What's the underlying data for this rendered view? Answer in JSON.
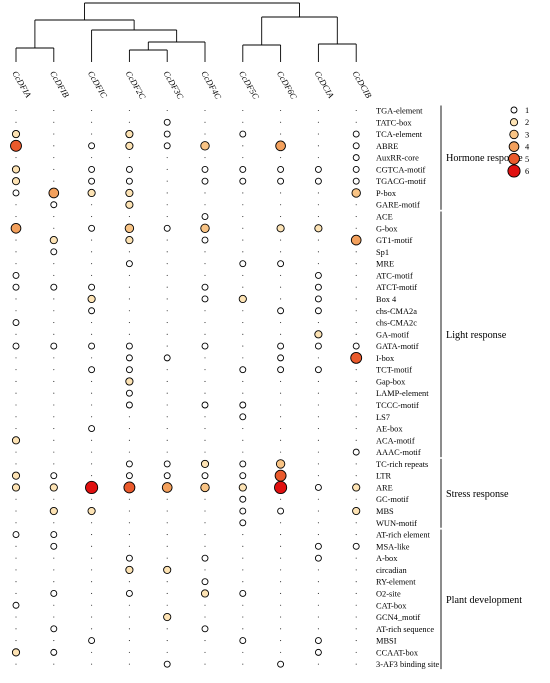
{
  "chart_data": {
    "type": "scatter",
    "title": "",
    "xlabel": "",
    "ylabel": "",
    "genes": [
      "CcDFIA",
      "CcDFIB",
      "CcDFIC",
      "CcDF2C",
      "CcDF3C",
      "CcDF4C",
      "CcDF5C",
      "CcDF6C",
      "CcDCIA",
      "CcDCIB"
    ],
    "elements": [
      "TGA-element",
      "TATC-box",
      "TCA-element",
      "ABRE",
      "AuxRR-core",
      "CGTCA-motif",
      "TGACG-motif",
      "P-box",
      "GARE-motif",
      "ACE",
      "G-box",
      "GT1-motif",
      "Sp1",
      "MRE",
      "ATC-motif",
      "ATCT-motif",
      "Box 4",
      "chs-CMA2a",
      "chs-CMA2c",
      "GA-motif",
      "GATA-motif",
      "I-box",
      "TCT-motif",
      "Gap-box",
      "LAMP-element",
      "TCCC-motif",
      "LS7",
      "AE-box",
      "ACA-motif",
      "AAAC-motif",
      "TC-rich repeats",
      "LTR",
      "ARE",
      "GC-motif",
      "MBS",
      "WUN-motif",
      "AT-rich element",
      "MSA-like",
      "A-box",
      "circadian",
      "RY-element",
      "O2-site",
      "CAT-box",
      "GCN4_motif",
      "AT-rich sequence",
      "MBSI",
      "CCAAT-box",
      "3-AF3 binding site"
    ],
    "groups": [
      {
        "name": "Hormone response",
        "start": 0,
        "end": 8
      },
      {
        "name": "Light response",
        "start": 9,
        "end": 29
      },
      {
        "name": "Stress response",
        "start": 30,
        "end": 35
      },
      {
        "name": "Plant development",
        "start": 36,
        "end": 47
      }
    ],
    "legend": {
      "values": [
        1,
        2,
        3,
        4,
        5,
        6
      ],
      "placement": "top-right"
    },
    "color_scale": [
      "#ffffff",
      "#fde3b4",
      "#f9c485",
      "#f3a05c",
      "#ea5a2c",
      "#e01010"
    ],
    "counts": [
      [
        0,
        0,
        0,
        0,
        0,
        0,
        0,
        0,
        0,
        0
      ],
      [
        0,
        0,
        0,
        0,
        1,
        0,
        0,
        0,
        0,
        0
      ],
      [
        2,
        0,
        0,
        2,
        1,
        0,
        1,
        0,
        0,
        1
      ],
      [
        5,
        0,
        1,
        2,
        1,
        3,
        0,
        4,
        0,
        1
      ],
      [
        0,
        0,
        0,
        0,
        0,
        0,
        0,
        0,
        0,
        1
      ],
      [
        2,
        0,
        1,
        1,
        0,
        1,
        1,
        1,
        1,
        1
      ],
      [
        2,
        0,
        1,
        1,
        0,
        1,
        1,
        1,
        1,
        1
      ],
      [
        1,
        4,
        2,
        2,
        0,
        0,
        0,
        0,
        0,
        3
      ],
      [
        0,
        1,
        0,
        2,
        0,
        0,
        0,
        0,
        0,
        0
      ],
      [
        0,
        0,
        0,
        0,
        0,
        1,
        0,
        0,
        0,
        0
      ],
      [
        4,
        0,
        1,
        3,
        1,
        3,
        0,
        2,
        2,
        0
      ],
      [
        0,
        2,
        0,
        2,
        0,
        1,
        0,
        0,
        0,
        4
      ],
      [
        0,
        1,
        0,
        0,
        0,
        0,
        0,
        0,
        0,
        0
      ],
      [
        0,
        0,
        0,
        1,
        0,
        0,
        1,
        1,
        0,
        0
      ],
      [
        1,
        0,
        0,
        0,
        0,
        0,
        0,
        0,
        1,
        0
      ],
      [
        1,
        1,
        1,
        0,
        0,
        1,
        0,
        0,
        1,
        0
      ],
      [
        0,
        0,
        2,
        0,
        0,
        1,
        2,
        0,
        1,
        0
      ],
      [
        0,
        0,
        1,
        0,
        0,
        0,
        0,
        1,
        1,
        0
      ],
      [
        1,
        0,
        0,
        0,
        0,
        0,
        0,
        0,
        0,
        0
      ],
      [
        0,
        0,
        0,
        0,
        0,
        0,
        0,
        0,
        2,
        0
      ],
      [
        1,
        1,
        1,
        1,
        0,
        1,
        0,
        1,
        1,
        1
      ],
      [
        0,
        0,
        0,
        1,
        1,
        0,
        0,
        1,
        0,
        5
      ],
      [
        0,
        0,
        1,
        1,
        0,
        0,
        1,
        1,
        1,
        0
      ],
      [
        0,
        0,
        0,
        2,
        0,
        0,
        0,
        0,
        0,
        0
      ],
      [
        0,
        0,
        0,
        1,
        0,
        0,
        0,
        0,
        0,
        0
      ],
      [
        0,
        0,
        0,
        1,
        0,
        1,
        1,
        0,
        0,
        0
      ],
      [
        0,
        0,
        0,
        0,
        0,
        0,
        1,
        0,
        0,
        0
      ],
      [
        0,
        0,
        1,
        0,
        0,
        0,
        0,
        0,
        0,
        0
      ],
      [
        2,
        0,
        0,
        0,
        0,
        0,
        0,
        0,
        0,
        0
      ],
      [
        0,
        0,
        0,
        0,
        0,
        0,
        0,
        0,
        0,
        1
      ],
      [
        0,
        0,
        0,
        1,
        1,
        2,
        1,
        3,
        0,
        0
      ],
      [
        2,
        1,
        0,
        1,
        1,
        1,
        1,
        5,
        0,
        0
      ],
      [
        2,
        2,
        6,
        5,
        4,
        3,
        2,
        6,
        1,
        2
      ],
      [
        0,
        0,
        0,
        0,
        0,
        0,
        1,
        0,
        0,
        0
      ],
      [
        0,
        2,
        2,
        0,
        0,
        0,
        1,
        1,
        0,
        2
      ],
      [
        0,
        0,
        0,
        0,
        0,
        0,
        1,
        0,
        0,
        0
      ],
      [
        1,
        1,
        0,
        0,
        0,
        0,
        0,
        0,
        0,
        0
      ],
      [
        0,
        1,
        0,
        0,
        0,
        0,
        0,
        0,
        1,
        1
      ],
      [
        0,
        0,
        0,
        1,
        0,
        1,
        0,
        0,
        1,
        0
      ],
      [
        0,
        0,
        0,
        2,
        2,
        0,
        0,
        0,
        0,
        0
      ],
      [
        0,
        0,
        0,
        0,
        0,
        1,
        0,
        0,
        0,
        0
      ],
      [
        0,
        1,
        0,
        1,
        0,
        2,
        1,
        0,
        0,
        0
      ],
      [
        1,
        0,
        0,
        0,
        0,
        0,
        0,
        0,
        0,
        0
      ],
      [
        0,
        0,
        0,
        0,
        2,
        0,
        0,
        0,
        0,
        0
      ],
      [
        0,
        1,
        0,
        0,
        0,
        1,
        0,
        0,
        0,
        0
      ],
      [
        0,
        0,
        1,
        0,
        0,
        0,
        1,
        0,
        1,
        0
      ],
      [
        2,
        1,
        0,
        0,
        0,
        0,
        0,
        0,
        1,
        0
      ],
      [
        0,
        0,
        0,
        0,
        1,
        0,
        0,
        1,
        0,
        0
      ]
    ]
  }
}
